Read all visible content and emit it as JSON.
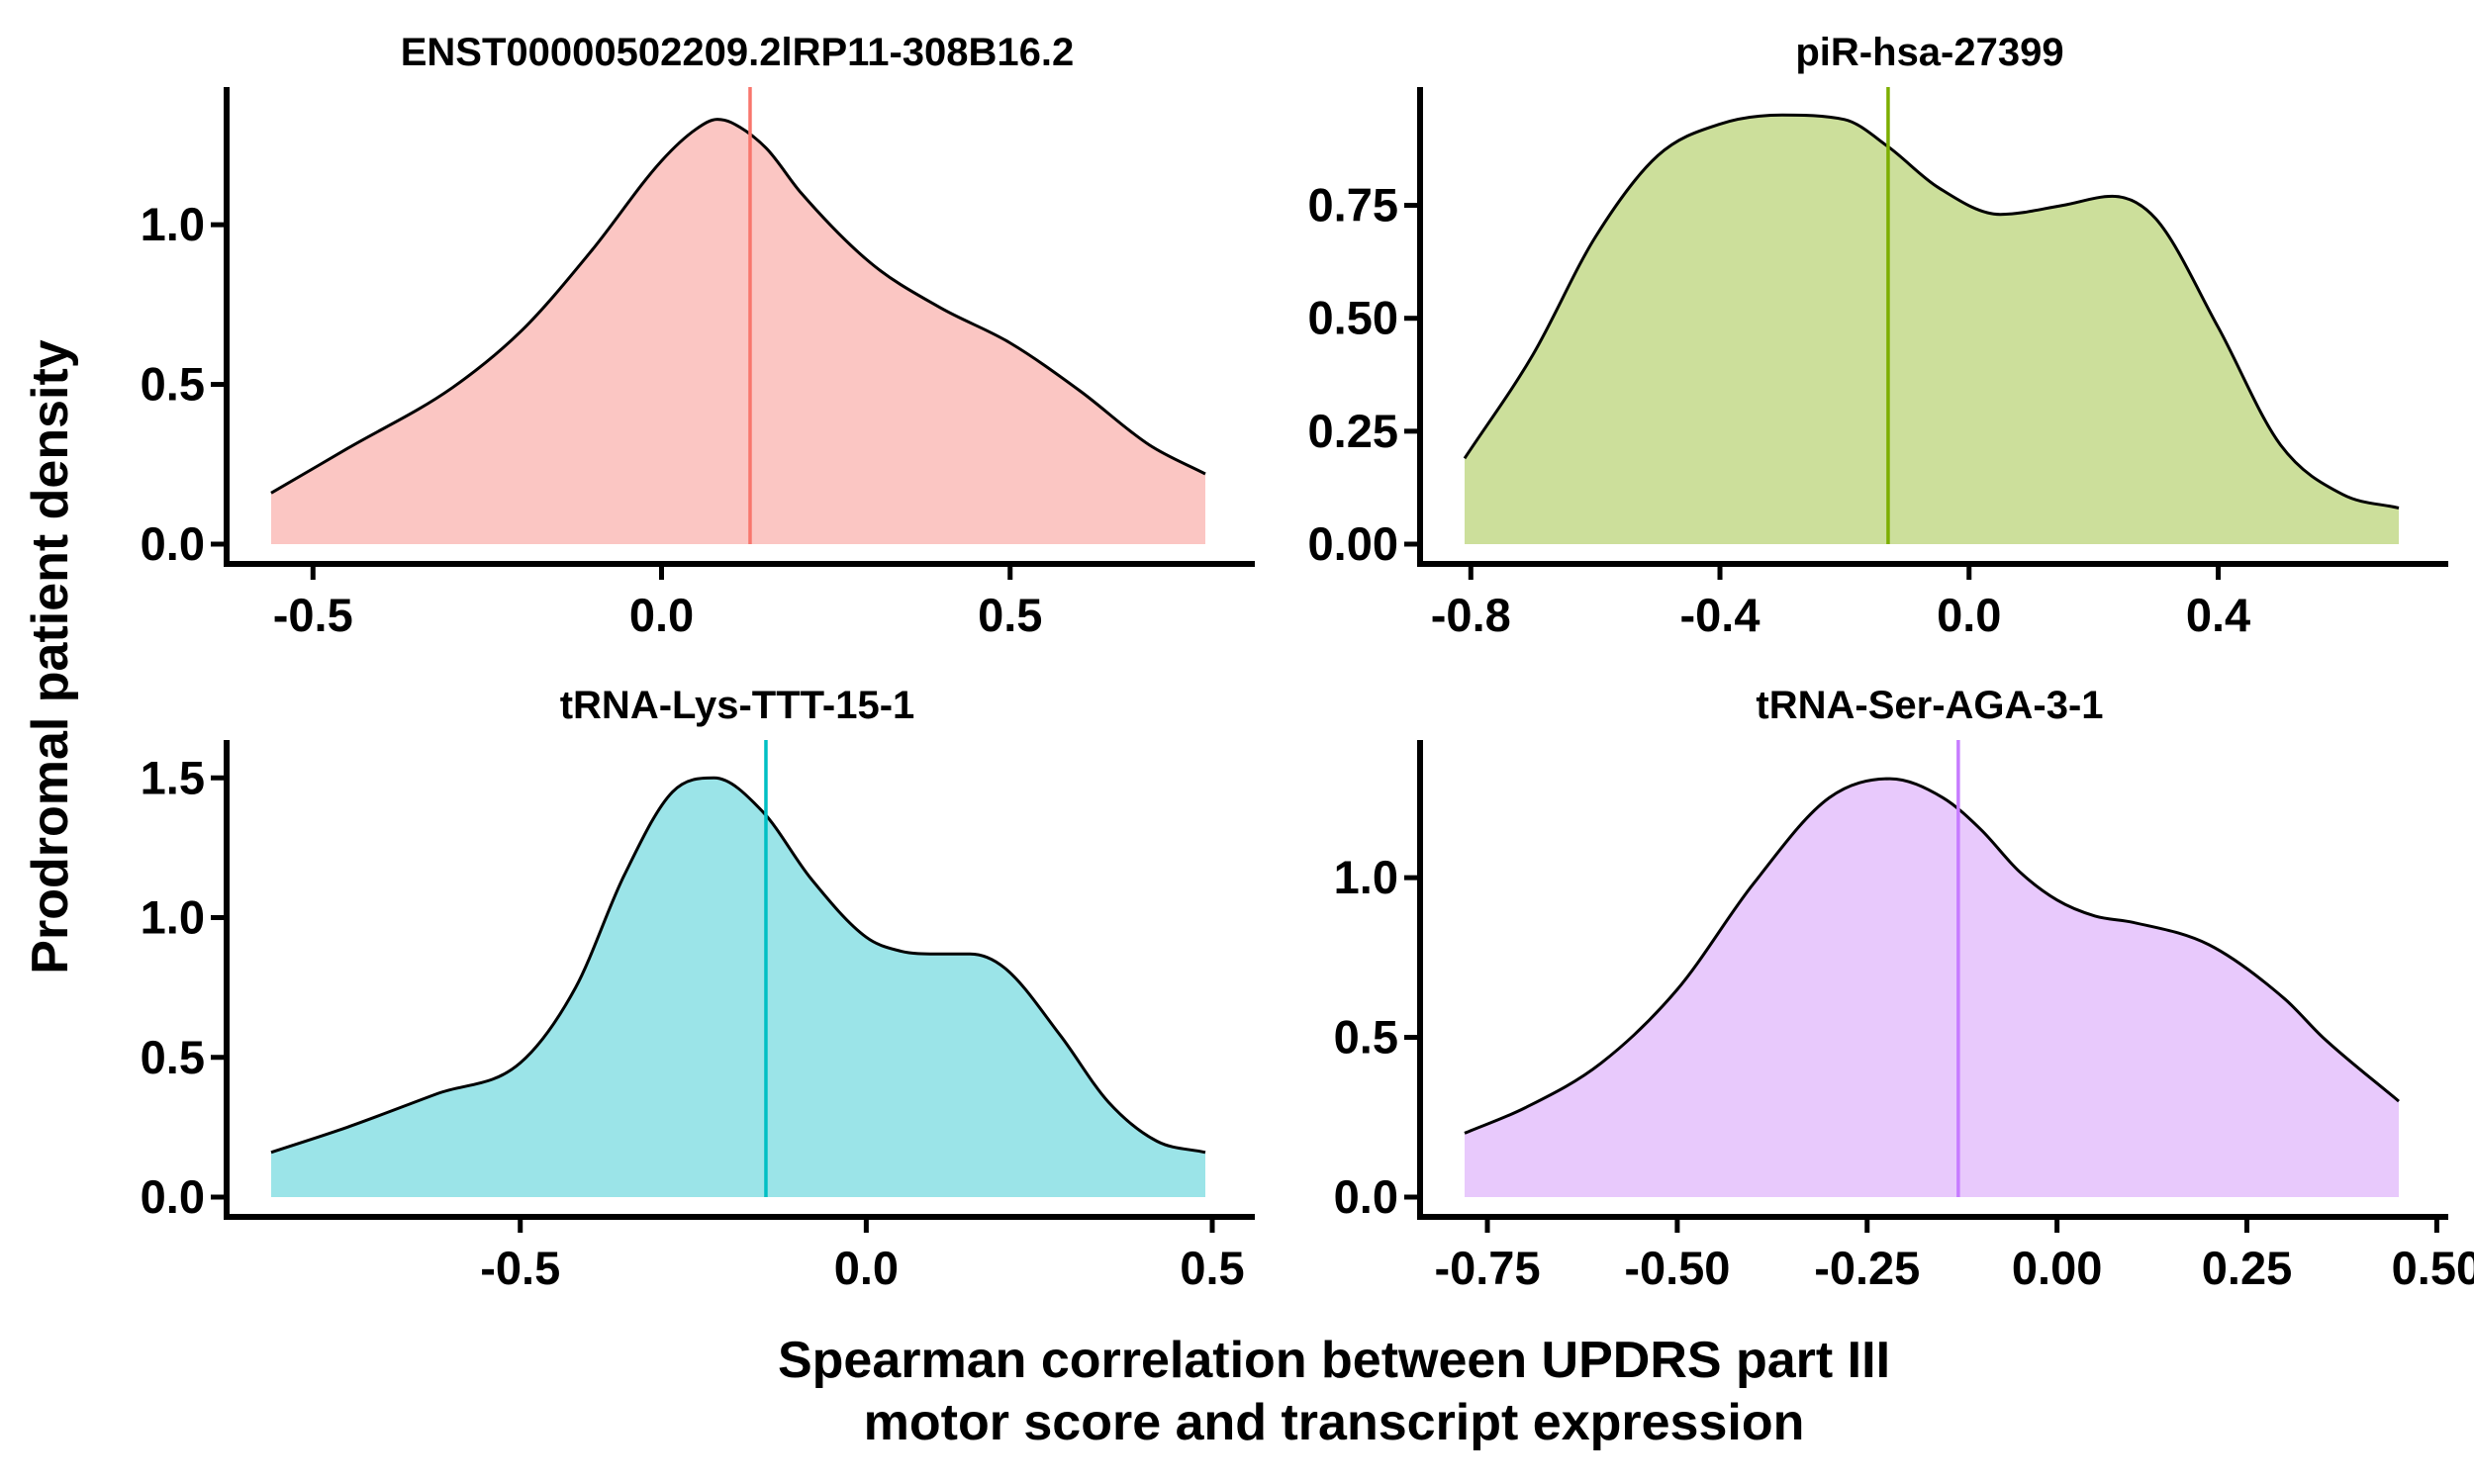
{
  "axes": {
    "ylabel": "Prodromal patient density",
    "xlabel_line1": "Spearman correlation between UPDRS part III",
    "xlabel_line2": "motor score and transcript expression"
  },
  "chart_data": [
    {
      "type": "area",
      "title": "ENST00000502209.2lRP11-308B16.2",
      "fill": "#FBC6C3",
      "line_color": "#F8766D",
      "vline": 0.127,
      "xlim": [
        -0.62,
        0.8
      ],
      "ylim": [
        0,
        1.4
      ],
      "xticks": [
        -0.5,
        0.0,
        0.5
      ],
      "xtick_labels": [
        "-0.5",
        "0.0",
        "0.5"
      ],
      "yticks": [
        0.0,
        0.5,
        1.0
      ],
      "ytick_labels": [
        "0.0",
        "0.5",
        "1.0"
      ],
      "x": [
        -0.56,
        -0.45,
        -0.3,
        -0.2,
        -0.1,
        0.0,
        0.05,
        0.08,
        0.1,
        0.15,
        0.2,
        0.3,
        0.4,
        0.5,
        0.6,
        0.7,
        0.78
      ],
      "y": [
        0.16,
        0.3,
        0.49,
        0.67,
        0.92,
        1.2,
        1.3,
        1.33,
        1.32,
        1.24,
        1.1,
        0.88,
        0.74,
        0.63,
        0.48,
        0.31,
        0.22
      ]
    },
    {
      "type": "area",
      "title": "piR-hsa-27399",
      "fill": "#CCDF9B",
      "line_color": "#7CAE00",
      "vline": -0.13,
      "xlim": [
        -0.86,
        0.72
      ],
      "ylim": [
        0,
        0.99
      ],
      "xticks": [
        -0.8,
        -0.4,
        0.0,
        0.4
      ],
      "xtick_labels": [
        "-0.8",
        "-0.4",
        "0.0",
        "0.4"
      ],
      "yticks": [
        0.0,
        0.25,
        0.5,
        0.75
      ],
      "ytick_labels": [
        "0.00",
        "0.25",
        "0.50",
        "0.75"
      ],
      "x": [
        -0.81,
        -0.7,
        -0.6,
        -0.5,
        -0.4,
        -0.3,
        -0.2,
        -0.13,
        -0.05,
        0.05,
        0.15,
        0.23,
        0.3,
        0.4,
        0.5,
        0.6,
        0.69
      ],
      "y": [
        0.19,
        0.42,
        0.68,
        0.86,
        0.93,
        0.95,
        0.94,
        0.88,
        0.79,
        0.73,
        0.75,
        0.77,
        0.72,
        0.48,
        0.22,
        0.11,
        0.08
      ]
    },
    {
      "type": "area",
      "title": "tRNA-Lys-TTT-15-1",
      "fill": "#9BE4E8",
      "line_color": "#00BFC4",
      "vline": -0.145,
      "xlim": [
        -0.92,
        0.55
      ],
      "ylim": [
        0,
        1.6
      ],
      "xticks": [
        -0.5,
        0.0,
        0.5
      ],
      "xtick_labels": [
        "-0.5",
        "0.0",
        "0.5"
      ],
      "yticks": [
        0.0,
        0.5,
        1.0,
        1.5
      ],
      "ytick_labels": [
        "0.0",
        "0.5",
        "1.0",
        "1.5"
      ],
      "x": [
        -0.86,
        -0.75,
        -0.62,
        -0.5,
        -0.42,
        -0.35,
        -0.28,
        -0.22,
        -0.15,
        -0.08,
        0.0,
        0.05,
        0.1,
        0.15,
        0.2,
        0.28,
        0.35,
        0.42,
        0.49
      ],
      "y": [
        0.16,
        0.25,
        0.37,
        0.48,
        0.75,
        1.15,
        1.45,
        1.5,
        1.38,
        1.14,
        0.93,
        0.88,
        0.87,
        0.87,
        0.82,
        0.58,
        0.34,
        0.2,
        0.16
      ]
    },
    {
      "type": "area",
      "title": "tRNA-Ser-AGA-3-1",
      "fill": "#E8C9FC",
      "line_color": "#C77CFF",
      "vline": -0.13,
      "xlim": [
        -0.82,
        0.5
      ],
      "ylim": [
        0,
        1.4
      ],
      "xticks": [
        -0.75,
        -0.5,
        -0.25,
        0.0,
        0.25,
        0.5
      ],
      "xtick_labels": [
        "-0.75",
        "-0.50",
        "-0.25",
        "0.00",
        "0.25",
        "0.50"
      ],
      "yticks": [
        0.0,
        0.5,
        1.0
      ],
      "ytick_labels": [
        "0.0",
        "0.5",
        "1.0"
      ],
      "x": [
        -0.78,
        -0.7,
        -0.6,
        -0.5,
        -0.4,
        -0.3,
        -0.22,
        -0.15,
        -0.1,
        -0.05,
        0.0,
        0.05,
        0.1,
        0.2,
        0.3,
        0.35,
        0.45
      ],
      "y": [
        0.2,
        0.28,
        0.42,
        0.65,
        0.98,
        1.25,
        1.31,
        1.25,
        1.15,
        1.02,
        0.93,
        0.88,
        0.86,
        0.79,
        0.62,
        0.5,
        0.3
      ]
    }
  ]
}
